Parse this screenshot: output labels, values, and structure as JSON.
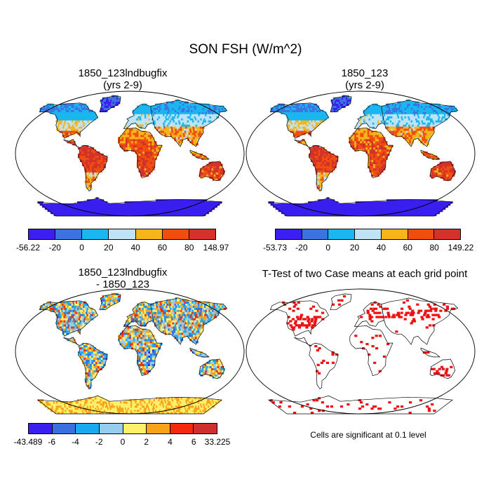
{
  "main_title": "SON FSH (W/m^2)",
  "panels": [
    {
      "id": "p1",
      "title_line1": "1850_123lndbugfix",
      "title_line2": "(yrs 2-9)",
      "colorbar": {
        "labels": [
          "-56.22",
          "-20",
          "0",
          "20",
          "40",
          "60",
          "80",
          "148.97"
        ],
        "colors": [
          "#3b1ef0",
          "#3b74e0",
          "#19b6f0",
          "#bfe3f5",
          "#f7b51b",
          "#f04e0f",
          "#d2322a"
        ]
      }
    },
    {
      "id": "p2",
      "title_line1": "1850_123",
      "title_line2": "(yrs 2-9)",
      "colorbar": {
        "labels": [
          "-53.73",
          "-20",
          "0",
          "20",
          "40",
          "60",
          "80",
          "149.22"
        ],
        "colors": [
          "#3b1ef0",
          "#3b74e0",
          "#19b6f0",
          "#bfe3f5",
          "#f7b51b",
          "#f04e0f",
          "#d2322a"
        ]
      }
    },
    {
      "id": "p3",
      "title_line1": "1850_123lndbugfix",
      "title_line2": "- 1850_123",
      "colorbar": {
        "labels": [
          "-43.489",
          "-6",
          "-4",
          "-2",
          "0",
          "2",
          "4",
          "6",
          "33.225"
        ],
        "colors": [
          "#3b1ef0",
          "#3b6fe0",
          "#19a9ee",
          "#96cdef",
          "#fff06a",
          "#f7a21b",
          "#f42a0f",
          "#cf2f2f"
        ]
      }
    },
    {
      "id": "p4",
      "title_line1": "T-Test of two Case means at each grid point",
      "note": "Cells are significant at 0.1 level",
      "sig_color": "#ee1111"
    }
  ]
}
